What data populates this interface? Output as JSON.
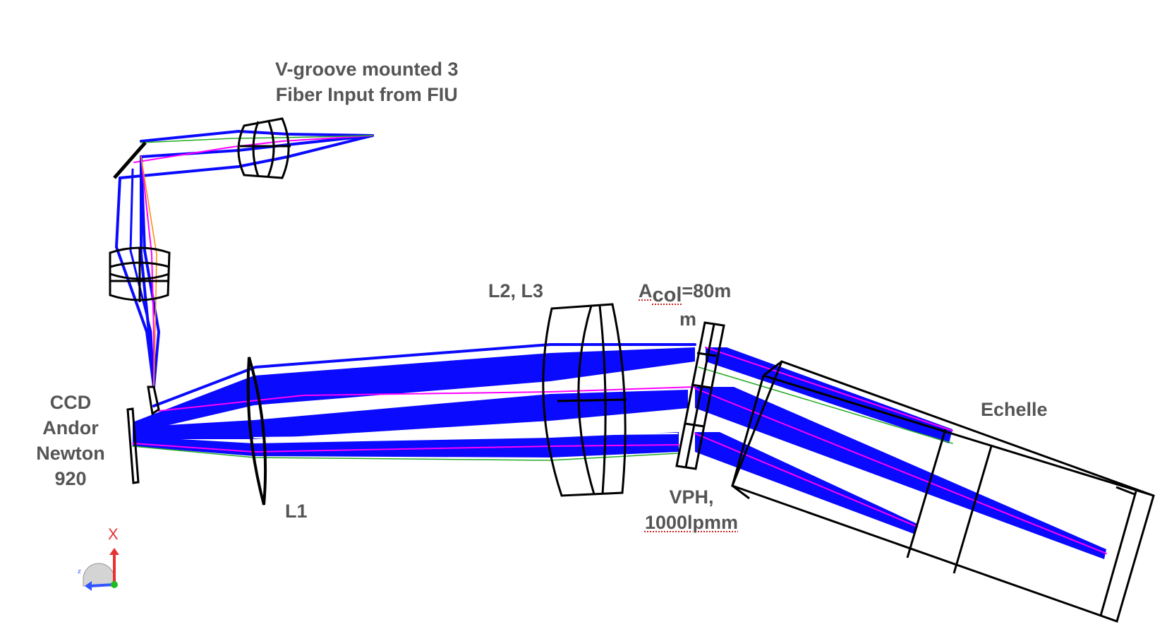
{
  "labels": {
    "fiber_input_line1": "V-groove mounted 3",
    "fiber_input_line2": "Fiber Input from FIU",
    "l2_l3": "L2, L3",
    "acol_a": "A",
    "acol_sub": "col",
    "acol_rest": "=80m",
    "acol_wrap": "m",
    "echelle": "Echelle",
    "ccd_line1": "CCD",
    "ccd_line2": "Andor",
    "ccd_line3": "Newton",
    "ccd_line4": "920",
    "l1": "L1",
    "vph_line1": "VPH,",
    "vph_line2": "1000lpmm",
    "axis_x": "X"
  },
  "colors": {
    "beam": "#0a0aff",
    "beam_magenta": "#ff00ff",
    "beam_green": "#22aa22",
    "beam_red": "#ff3333",
    "outline": "#000000",
    "label_text": "#555555",
    "axis_x": "#e53333",
    "axis_y": "#22bb22",
    "axis_z": "#3355ff"
  }
}
